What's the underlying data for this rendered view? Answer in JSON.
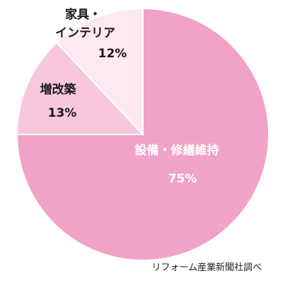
{
  "chart_data": {
    "type": "pie",
    "slices": [
      {
        "name": "設備・修繕維持",
        "value": 75,
        "value_label": "75%",
        "color": "#f0a3c6"
      },
      {
        "name": "増改築",
        "value": 13,
        "value_label": "13%",
        "color": "#f7c8dc"
      },
      {
        "name": "家具・インテリア",
        "value": 12,
        "value_label": "12%",
        "color": "#fce9f1"
      }
    ],
    "source": "リフォーム産業新聞社調べ"
  }
}
